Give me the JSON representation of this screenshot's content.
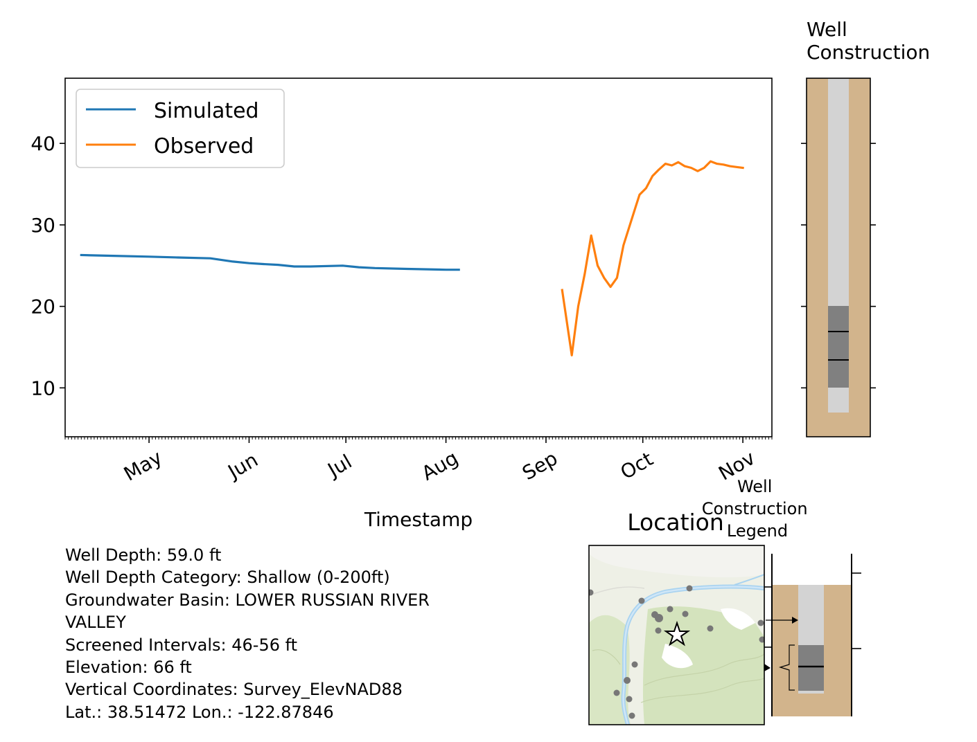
{
  "chart_data": [
    {
      "type": "line",
      "title": "",
      "xlabel": "Timestamp",
      "ylabel": "",
      "ylim": [
        4,
        48
      ],
      "yticks": [
        10,
        20,
        30,
        40
      ],
      "xticks": [
        "May",
        "Jun",
        "Jul",
        "Aug",
        "Sep",
        "Oct",
        "Nov"
      ],
      "xtick_dates": [
        "2021-05-01",
        "2021-06-01",
        "2021-07-01",
        "2021-08-01",
        "2021-09-01",
        "2021-10-01",
        "2021-11-01"
      ],
      "xlim": [
        "2021-04-05",
        "2021-11-10"
      ],
      "grid": false,
      "legend": {
        "placement": "upper-left",
        "entries": [
          "Simulated",
          "Observed"
        ]
      },
      "series": [
        {
          "name": "Simulated",
          "color": "#1f77b4",
          "x": [
            "2021-04-10",
            "2021-04-20",
            "2021-05-01",
            "2021-05-10",
            "2021-05-20",
            "2021-05-27",
            "2021-06-01",
            "2021-06-05",
            "2021-06-10",
            "2021-06-15",
            "2021-06-20",
            "2021-06-30",
            "2021-07-05",
            "2021-07-10",
            "2021-07-20",
            "2021-08-01",
            "2021-08-05"
          ],
          "y": [
            26.3,
            26.2,
            26.1,
            26.0,
            25.9,
            25.5,
            25.3,
            25.2,
            25.1,
            24.9,
            24.9,
            25.0,
            24.8,
            24.7,
            24.6,
            24.5,
            24.5
          ]
        },
        {
          "name": "Observed",
          "color": "#ff7f0e",
          "x": [
            "2021-09-06",
            "2021-09-09",
            "2021-09-11",
            "2021-09-13",
            "2021-09-15",
            "2021-09-17",
            "2021-09-19",
            "2021-09-21",
            "2021-09-23",
            "2021-09-25",
            "2021-09-27",
            "2021-09-29",
            "2021-09-30",
            "2021-10-02",
            "2021-10-04",
            "2021-10-06",
            "2021-10-08",
            "2021-10-10",
            "2021-10-12",
            "2021-10-14",
            "2021-10-16",
            "2021-10-18",
            "2021-10-20",
            "2021-10-22",
            "2021-10-24",
            "2021-10-26",
            "2021-10-28",
            "2021-10-30",
            "2021-11-01"
          ],
          "y": [
            22.0,
            14.0,
            20.0,
            24.0,
            28.7,
            25.0,
            23.5,
            22.4,
            23.5,
            27.5,
            30.0,
            32.5,
            33.7,
            34.5,
            36.0,
            36.8,
            37.5,
            37.3,
            37.7,
            37.2,
            37.0,
            36.6,
            37.0,
            37.8,
            37.5,
            37.4,
            37.2,
            37.1,
            37.0
          ]
        }
      ]
    },
    {
      "type": "diagram",
      "title": "Well\nConstruction",
      "well_depth_ft": 59.0,
      "screened_interval_ft": [
        46,
        56
      ],
      "colors": {
        "soil": "#d2b48c",
        "casing": "#d3d3d3",
        "screen": "#808080"
      }
    },
    {
      "type": "map",
      "title": "Location",
      "marker": "star"
    },
    {
      "type": "diagram",
      "title": "Well\nConstruction\nLegend"
    }
  ],
  "info": {
    "lines": [
      "Well Depth: 59.0 ft",
      "Well Depth Category: Shallow (0-200ft)",
      "Groundwater Basin: LOWER RUSSIAN RIVER",
      "VALLEY",
      "Screened Intervals: 46-56 ft",
      "Elevation: 66 ft",
      "Vertical Coordinates: Survey_ElevNAD88",
      "Lat.: 38.51472 Lon.: -122.87846"
    ]
  }
}
